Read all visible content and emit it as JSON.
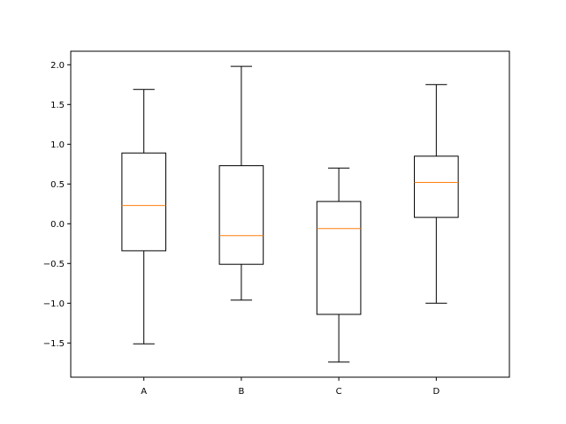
{
  "chart_data": {
    "type": "box",
    "categories": [
      "A",
      "B",
      "C",
      "D"
    ],
    "boxes": [
      {
        "category": "A",
        "whisker_low": -1.51,
        "q1": -0.34,
        "median": 0.23,
        "q3": 0.89,
        "whisker_high": 1.69
      },
      {
        "category": "B",
        "whisker_low": -0.96,
        "q1": -0.51,
        "median": -0.15,
        "q3": 0.73,
        "whisker_high": 1.98
      },
      {
        "category": "C",
        "whisker_low": -1.74,
        "q1": -1.14,
        "median": -0.06,
        "q3": 0.28,
        "whisker_high": 0.7
      },
      {
        "category": "D",
        "whisker_low": -1.0,
        "q1": 0.08,
        "median": 0.52,
        "q3": 0.85,
        "whisker_high": 1.75
      }
    ],
    "y_ticks": [
      -1.5,
      -1.0,
      -0.5,
      0.0,
      0.5,
      1.0,
      1.5,
      2.0
    ],
    "y_tick_labels": [
      "−1.5",
      "−1.0",
      "−0.5",
      "0.0",
      "0.5",
      "1.0",
      "1.5",
      "2.0"
    ],
    "ylim": [
      -1.93,
      2.17
    ],
    "title": "",
    "xlabel": "",
    "ylabel": "",
    "grid": false,
    "colors": {
      "box": "#000000",
      "median": "#ff7f0e",
      "axes": "#000000"
    }
  }
}
